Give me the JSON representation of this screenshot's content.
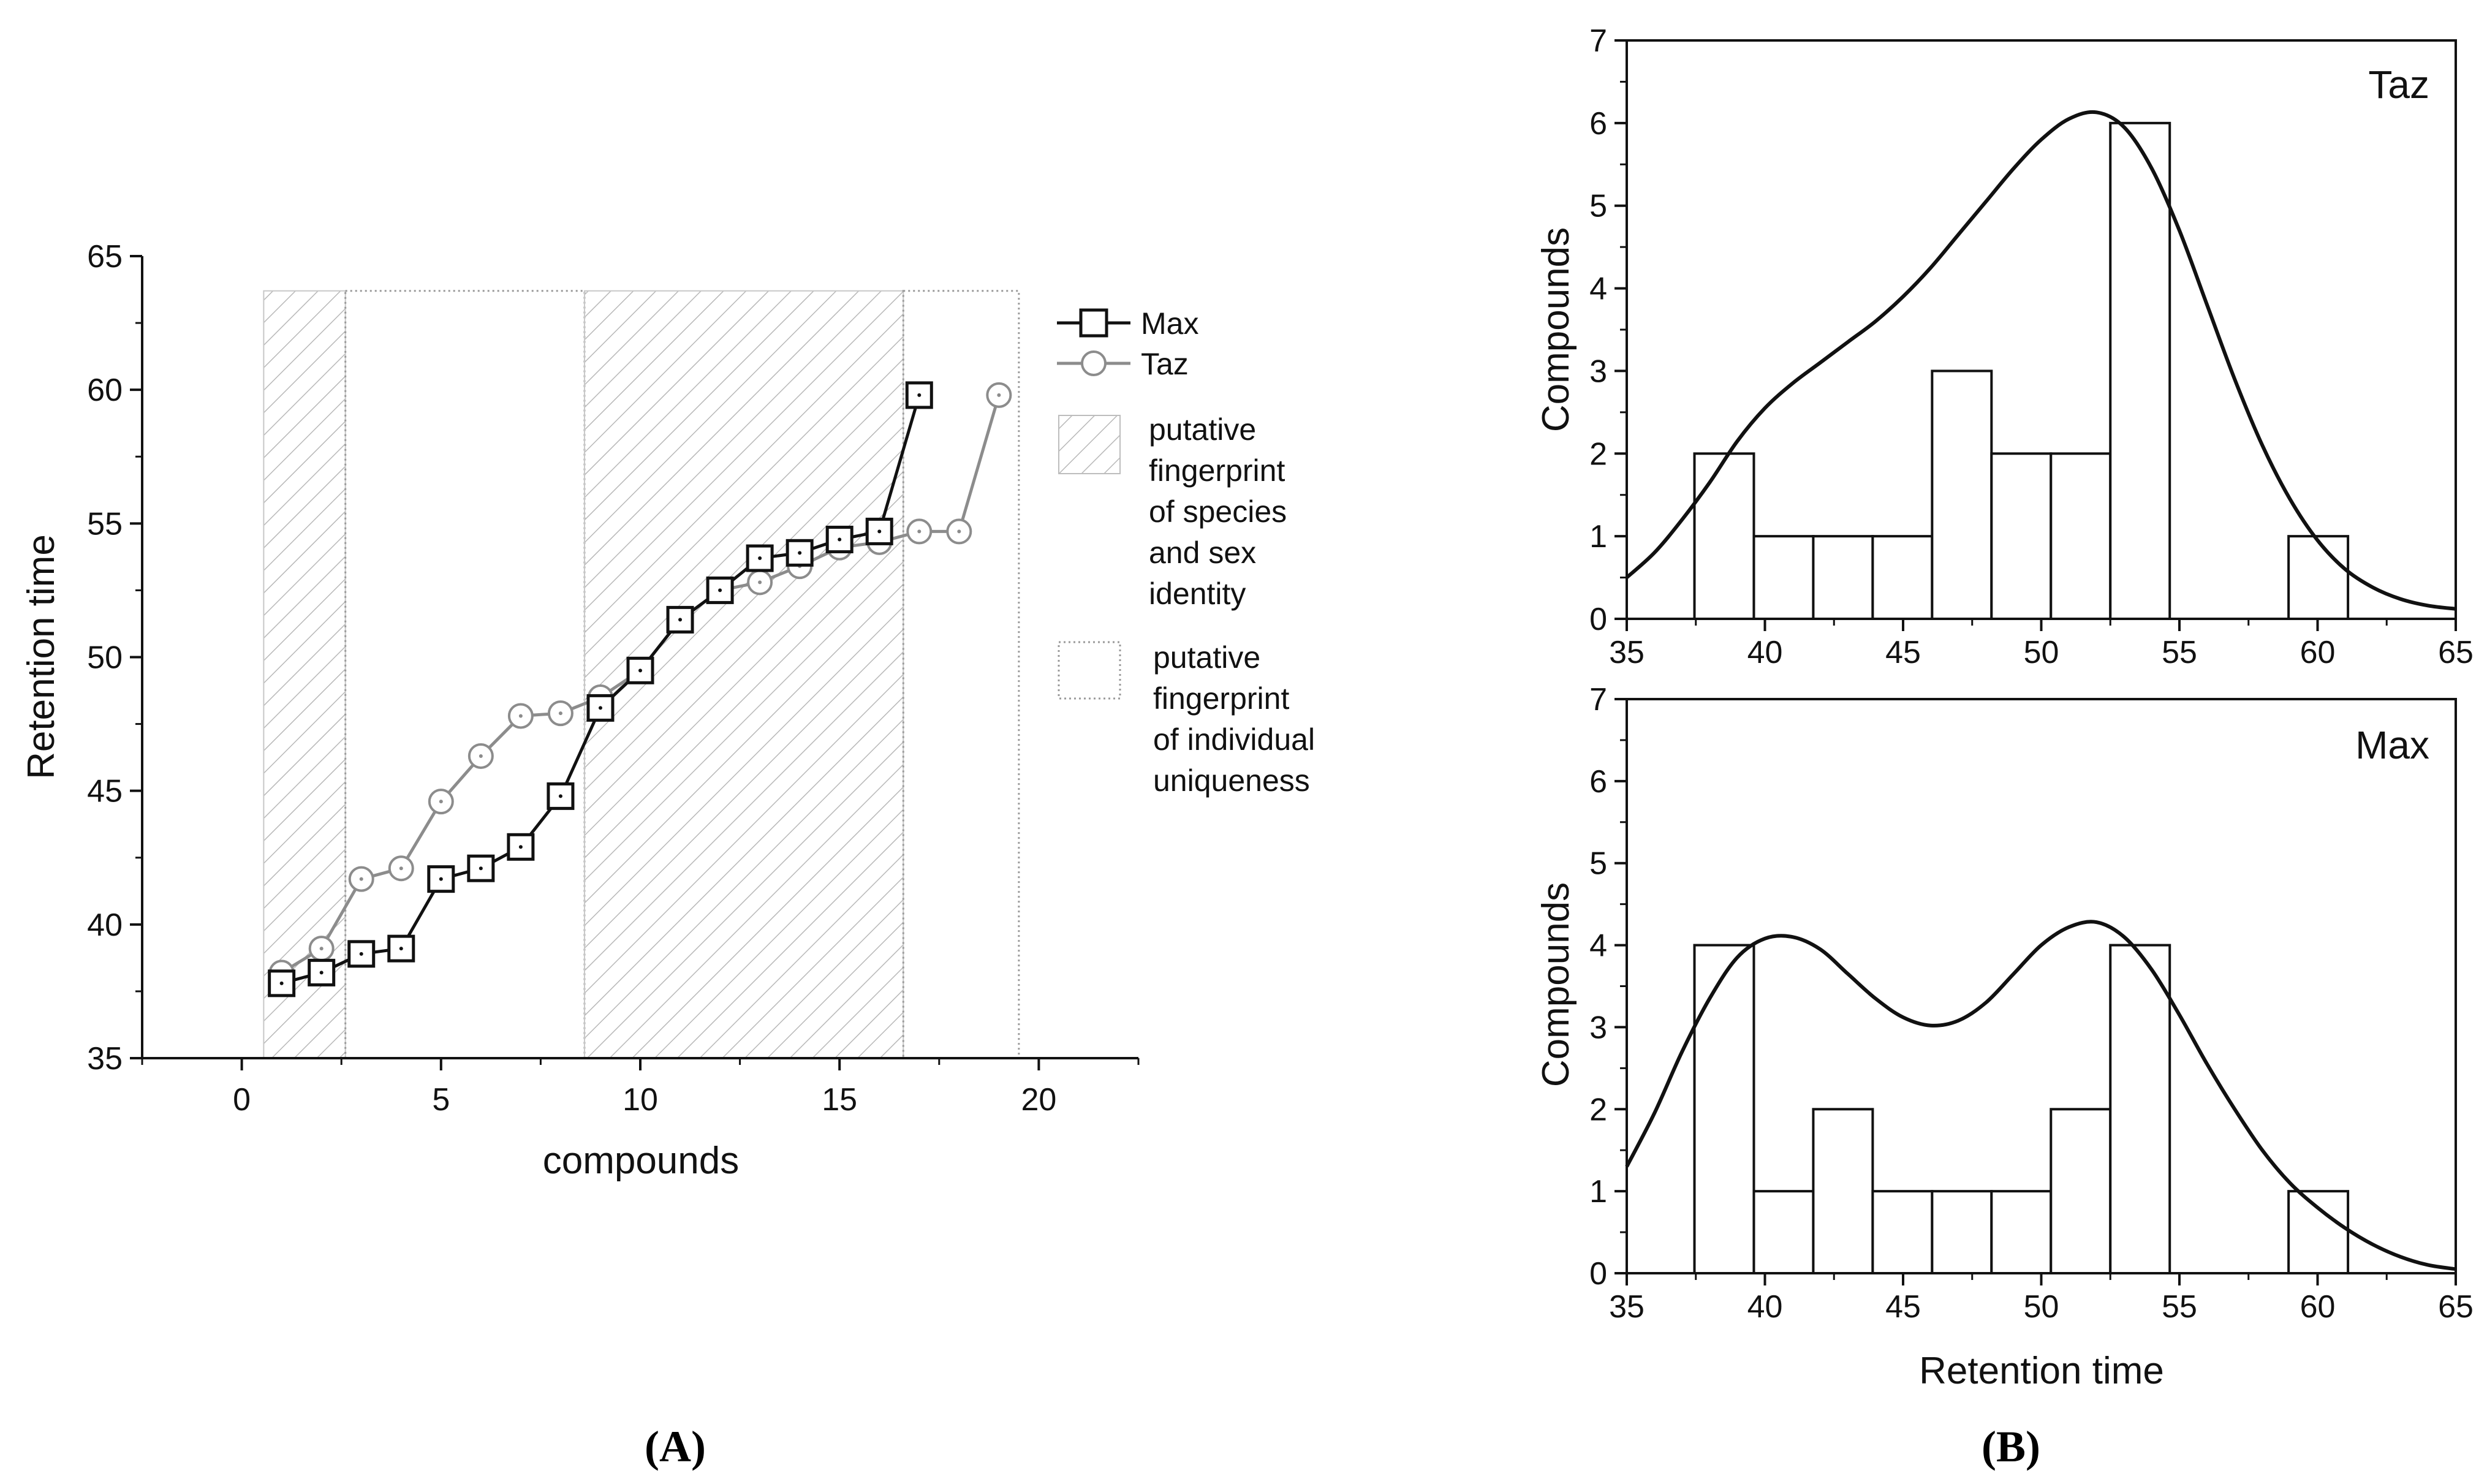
{
  "chart_data": [
    {
      "id": "A",
      "type": "line",
      "panel_label": "(A)",
      "xlabel": "compounds",
      "ylabel": "Retention time",
      "xlim": [
        -2.5,
        22.5
      ],
      "ylim": [
        35,
        65
      ],
      "xticks": [
        0,
        5,
        10,
        15,
        20
      ],
      "yticks": [
        35,
        40,
        45,
        50,
        55,
        60,
        65
      ],
      "series": [
        {
          "name": "Max",
          "marker": "square",
          "color": "#111111",
          "x": [
            1,
            2,
            3,
            4,
            5,
            6,
            7,
            8,
            9,
            10,
            11,
            12,
            13,
            14,
            15,
            16,
            17
          ],
          "y": [
            37.8,
            38.2,
            38.9,
            39.1,
            41.7,
            42.1,
            42.9,
            44.8,
            48.1,
            49.5,
            51.4,
            52.5,
            53.7,
            53.9,
            54.4,
            54.7,
            59.8
          ]
        },
        {
          "name": "Taz",
          "marker": "circle",
          "color": "#8c8c8c",
          "x": [
            1,
            2,
            3,
            4,
            5,
            6,
            7,
            8,
            9,
            10,
            11,
            12,
            13,
            14,
            15,
            16,
            17,
            18,
            19
          ],
          "y": [
            38.2,
            39.1,
            41.7,
            42.1,
            44.6,
            46.3,
            47.8,
            47.9,
            48.5,
            49.5,
            51.4,
            52.5,
            52.8,
            53.4,
            54.1,
            54.3,
            54.7,
            54.7,
            59.8
          ]
        }
      ],
      "regions": [
        {
          "kind": "species",
          "x0": 0.55,
          "x1": 2.6,
          "y0": 35,
          "y1": 63.7
        },
        {
          "kind": "individual",
          "x0": 2.6,
          "x1": 8.6,
          "y0": 35,
          "y1": 63.7
        },
        {
          "kind": "species",
          "x0": 8.6,
          "x1": 16.6,
          "y0": 35,
          "y1": 63.7
        },
        {
          "kind": "individual",
          "x0": 16.6,
          "x1": 19.5,
          "y0": 35,
          "y1": 63.7
        }
      ],
      "legend": {
        "placement": "right",
        "entries": [
          "Max",
          "Taz"
        ],
        "region_entries": [
          {
            "kind": "species",
            "lines": [
              "putative",
              "fingerprint",
              "of species",
              "and sex",
              "identity"
            ]
          },
          {
            "kind": "individual",
            "lines": [
              "putative",
              "fingerprint",
              "of individual",
              "uniqueness"
            ]
          }
        ]
      }
    },
    {
      "id": "B-top",
      "type": "histogram",
      "series_name": "Taz",
      "title": "Taz",
      "xlabel": "",
      "ylabel": "Compounds",
      "xlim": [
        35,
        65
      ],
      "ylim": [
        0,
        7
      ],
      "xticks": [
        35,
        40,
        45,
        50,
        55,
        60,
        65
      ],
      "yticks": [
        0,
        1,
        2,
        3,
        4,
        5,
        6,
        7
      ],
      "bin_edges": [
        37.45,
        39.6,
        41.75,
        43.9,
        46.05,
        48.2,
        50.35,
        52.5,
        54.65,
        56.8,
        58.95,
        61.1
      ],
      "counts": [
        2,
        1,
        1,
        1,
        3,
        2,
        2,
        6,
        0,
        0,
        1
      ],
      "curve": {
        "type": "kde",
        "x": [
          35,
          36,
          37,
          38,
          39,
          40,
          41,
          42,
          43,
          44,
          45,
          46,
          47,
          48,
          49,
          50,
          51,
          52,
          53,
          54,
          55,
          56,
          57,
          58,
          59,
          60,
          61,
          62,
          63,
          64,
          65
        ],
        "y": [
          0.5,
          0.8,
          1.2,
          1.65,
          2.15,
          2.55,
          2.85,
          3.1,
          3.35,
          3.6,
          3.9,
          4.25,
          4.65,
          5.05,
          5.45,
          5.8,
          6.05,
          6.13,
          5.95,
          5.45,
          4.7,
          3.8,
          2.9,
          2.1,
          1.45,
          0.95,
          0.6,
          0.38,
          0.24,
          0.16,
          0.12
        ]
      }
    },
    {
      "id": "B-bottom",
      "type": "histogram",
      "series_name": "Max",
      "title": "Max",
      "xlabel": "Retention time",
      "ylabel": "Compounds",
      "xlim": [
        35,
        65
      ],
      "ylim": [
        0,
        7
      ],
      "xticks": [
        35,
        40,
        45,
        50,
        55,
        60,
        65
      ],
      "yticks": [
        0,
        1,
        2,
        3,
        4,
        5,
        6,
        7
      ],
      "bin_edges": [
        37.45,
        39.6,
        41.75,
        43.9,
        46.05,
        48.2,
        50.35,
        52.5,
        54.65,
        56.8,
        58.95,
        61.1
      ],
      "counts": [
        4,
        1,
        2,
        1,
        1,
        1,
        2,
        4,
        0,
        0,
        1
      ],
      "curve": {
        "type": "kde",
        "x": [
          35,
          36,
          37,
          38,
          39,
          40,
          41,
          42,
          43,
          44,
          45,
          46,
          47,
          48,
          49,
          50,
          51,
          52,
          53,
          54,
          55,
          56,
          57,
          58,
          59,
          60,
          61,
          62,
          63,
          64,
          65
        ],
        "y": [
          1.3,
          1.95,
          2.7,
          3.35,
          3.85,
          4.08,
          4.1,
          3.95,
          3.65,
          3.35,
          3.12,
          3.02,
          3.08,
          3.3,
          3.65,
          4.0,
          4.22,
          4.28,
          4.1,
          3.7,
          3.15,
          2.55,
          2.0,
          1.5,
          1.1,
          0.8,
          0.55,
          0.35,
          0.2,
          0.1,
          0.05
        ]
      }
    }
  ],
  "panel_labels": {
    "A": "(A)",
    "B": "(B)"
  }
}
